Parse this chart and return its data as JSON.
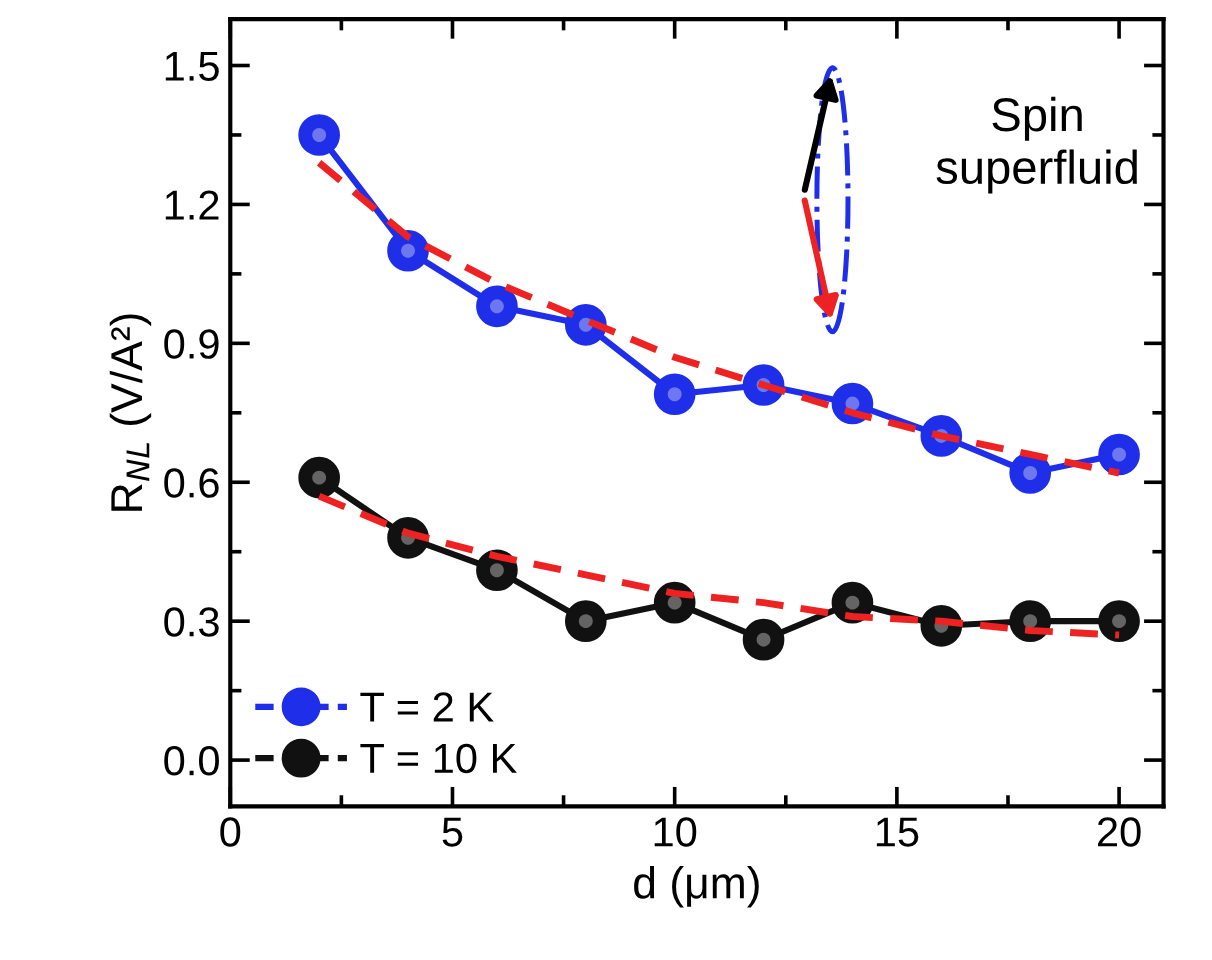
{
  "chart_data": {
    "type": "line",
    "xlabel": "d (μm)",
    "ylabel": "R$_{NL}$ (V/A²)",
    "xlim": [
      0,
      21
    ],
    "xticks": [
      0,
      5,
      10,
      15,
      20
    ],
    "ylim": [
      -0.1,
      1.6
    ],
    "yticks": [
      {
        "value": 0,
        "label": "0.0"
      },
      0.3,
      0.6,
      0.9,
      1.2,
      1.5
    ],
    "legend": "bottom left",
    "grid": false,
    "marker": "circle",
    "line_style": "solid",
    "annotations": [
      "Spin\nsuperfluid"
    ],
    "series": [
      {
        "name": "T = 2 K",
        "color": "#1f2ee8",
        "x": [
          2,
          4,
          6,
          8,
          10,
          12,
          14,
          16,
          18,
          20
        ],
        "values": [
          1.35,
          1.1,
          0.98,
          0.94,
          0.79,
          0.81,
          0.77,
          0.7,
          0.62,
          0.66
        ]
      },
      {
        "name": "T = 10 K",
        "color": "#111111",
        "x": [
          2,
          4,
          6,
          8,
          10,
          12,
          14,
          16,
          18,
          20
        ],
        "values": [
          0.61,
          0.48,
          0.41,
          0.3,
          0.34,
          0.26,
          0.34,
          0.29,
          0.3,
          0.3
        ]
      },
      {
        "color": "#ee2222",
        "marker": "none",
        "line_style": "dashed",
        "x": [
          2,
          4,
          6,
          8,
          10,
          12,
          14,
          16,
          18,
          20
        ],
        "values": [
          1.29,
          1.13,
          1.03,
          0.95,
          0.87,
          0.81,
          0.75,
          0.7,
          0.66,
          0.62
        ]
      },
      {
        "color": "#ee2222",
        "marker": "none",
        "line_style": "dashed",
        "x": [
          2,
          4,
          6,
          8,
          10,
          12,
          14,
          16,
          18,
          20
        ],
        "values": [
          0.57,
          0.49,
          0.44,
          0.4,
          0.36,
          0.34,
          0.31,
          0.3,
          0.28,
          0.27
        ]
      }
    ]
  }
}
